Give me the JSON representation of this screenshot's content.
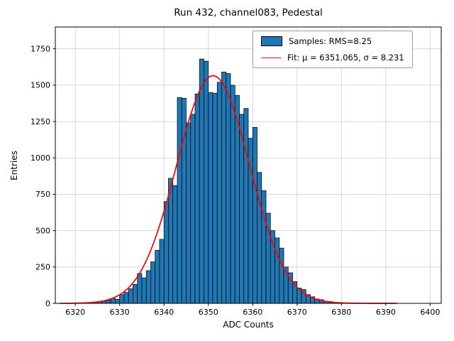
{
  "figure": {
    "title": "Run 432, channel083, Pedestal",
    "xlabel": "ADC Counts",
    "ylabel": "Entries"
  },
  "legend": {
    "samples_label": "Samples: RMS=8.25",
    "fit_label": "Fit: μ = 6351.065, σ = 8.231"
  },
  "chart_data": {
    "type": "bar",
    "subtype": "histogram",
    "title": "Run 432, channel083, Pedestal",
    "xlabel": "ADC Counts",
    "ylabel": "Entries",
    "xlim": [
      6315.5,
      6402.5
    ],
    "ylim": [
      0,
      1900
    ],
    "xticks": [
      6320,
      6330,
      6340,
      6350,
      6360,
      6370,
      6380,
      6390,
      6400
    ],
    "yticks": [
      0,
      250,
      500,
      750,
      1000,
      1250,
      1500,
      1750
    ],
    "grid": true,
    "legend_position": "upper right",
    "bin_width": 1,
    "bins_start": 6318,
    "bin_counts": [
      2,
      1,
      3,
      2,
      5,
      6,
      9,
      12,
      16,
      22,
      35,
      28,
      60,
      75,
      100,
      130,
      205,
      175,
      225,
      285,
      365,
      440,
      700,
      860,
      810,
      1415,
      1410,
      1240,
      1300,
      1440,
      1680,
      1665,
      1450,
      1445,
      1520,
      1590,
      1580,
      1500,
      1430,
      1300,
      1340,
      1135,
      1210,
      900,
      775,
      620,
      500,
      450,
      380,
      250,
      210,
      150,
      105,
      95,
      60,
      45,
      30,
      25,
      15,
      12,
      8
    ],
    "fit": {
      "mu": 6351.065,
      "sigma": 8.231,
      "amplitude": 1565,
      "rms": 8.25,
      "x_start": 6316.5,
      "x_end": 6392.5
    },
    "colors": {
      "bar_fill": "#1f77b4",
      "bar_edge": "#000000",
      "fit_line": "#ff0000",
      "grid": "#cfcfcf",
      "frame": "#000000"
    }
  }
}
